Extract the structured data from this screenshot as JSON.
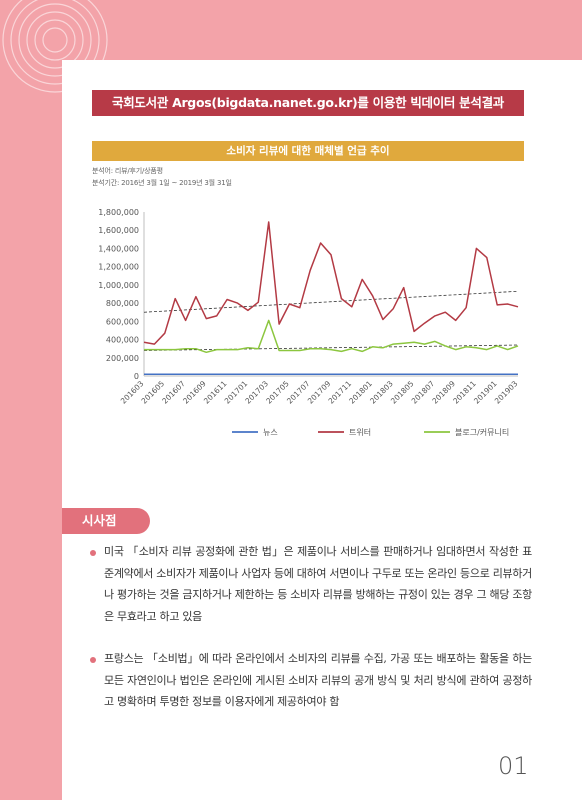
{
  "header": {
    "title": "국회도서관 Argos(bigdata.nanet.go.kr)를 이용한 빅데이터 분석결과"
  },
  "chart_section": {
    "title": "소비자 리뷰에 대한 매체별 언급 추이",
    "meta_target": "분석어: 리뷰/후기/상품평",
    "meta_period": "분석기간: 2016년 3월 1일 ~ 2019년 3월 31일"
  },
  "chart_data": {
    "type": "line",
    "title": "소비자 리뷰에 대한 매체별 언급 추이",
    "y_ticks": [
      0,
      200000,
      400000,
      600000,
      800000,
      1000000,
      1200000,
      1400000,
      1600000,
      1800000
    ],
    "y_tick_labels": [
      "0",
      "200,000",
      "400,000",
      "600,000",
      "800,000",
      "1,000,000",
      "1,200,000",
      "1,400,000",
      "1,600,000",
      "1,800,000"
    ],
    "ylim": [
      0,
      1800000
    ],
    "x_tick_labels": [
      "201603",
      "201605",
      "201607",
      "201609",
      "201611",
      "201701",
      "201703",
      "201705",
      "201707",
      "201709",
      "201711",
      "201801",
      "201803",
      "201805",
      "201807",
      "201809",
      "201811",
      "201901",
      "201903"
    ],
    "x": [
      "201603",
      "201604",
      "201605",
      "201606",
      "201607",
      "201608",
      "201609",
      "201610",
      "201611",
      "201612",
      "201701",
      "201702",
      "201703",
      "201704",
      "201705",
      "201706",
      "201707",
      "201708",
      "201709",
      "201710",
      "201711",
      "201712",
      "201801",
      "201802",
      "201803",
      "201804",
      "201805",
      "201806",
      "201807",
      "201808",
      "201809",
      "201810",
      "201811",
      "201812",
      "201901",
      "201902",
      "201903"
    ],
    "series": [
      {
        "name": "뉴스",
        "color": "#4472c4",
        "values": [
          20000,
          20000,
          20000,
          20000,
          20000,
          20000,
          20000,
          20000,
          20000,
          20000,
          20000,
          20000,
          20000,
          20000,
          20000,
          20000,
          20000,
          20000,
          20000,
          20000,
          20000,
          20000,
          20000,
          20000,
          20000,
          20000,
          20000,
          20000,
          20000,
          20000,
          20000,
          20000,
          20000,
          20000,
          20000,
          20000,
          20000
        ]
      },
      {
        "name": "트위터",
        "color": "#b33a44",
        "values": [
          370000,
          350000,
          470000,
          850000,
          610000,
          870000,
          630000,
          660000,
          840000,
          800000,
          720000,
          810000,
          1690000,
          570000,
          790000,
          750000,
          1160000,
          1460000,
          1330000,
          850000,
          760000,
          1060000,
          880000,
          620000,
          740000,
          970000,
          490000,
          580000,
          660000,
          700000,
          610000,
          750000,
          1400000,
          1300000,
          780000,
          790000,
          760000
        ]
      },
      {
        "name": "블로그/커뮤니티",
        "color": "#8cc63f",
        "values": [
          290000,
          290000,
          290000,
          290000,
          300000,
          300000,
          260000,
          290000,
          290000,
          290000,
          310000,
          300000,
          610000,
          280000,
          280000,
          280000,
          300000,
          300000,
          290000,
          270000,
          300000,
          270000,
          320000,
          310000,
          350000,
          360000,
          370000,
          350000,
          380000,
          330000,
          290000,
          320000,
          310000,
          290000,
          330000,
          290000,
          330000
        ]
      }
    ],
    "trendlines": [
      {
        "series": "트위터",
        "start": 700000,
        "end": 930000
      },
      {
        "series": "블로그/커뮤니티",
        "start": 280000,
        "end": 340000
      }
    ],
    "legend_position": "bottom",
    "grid": false
  },
  "insight": {
    "label": "시사점",
    "bullets": [
      "미국 「소비자 리뷰 공정화에 관한 법」은 제품이나 서비스를 판매하거나 임대하면서 작성한 표준계약에서 소비자가 제품이나 사업자 등에 대하여 서면이나 구두로 또는 온라인 등으로 리뷰하거나 평가하는 것을 금지하거나 제한하는 등 소비자 리뷰를 방해하는 규정이 있는 경우 그 해당 조항은 무효라고 하고 있음",
      "프랑스는 「소비법」에 따라 온라인에서 소비자의 리뷰를 수집, 가공 또는 배포하는 활동을 하는 모든 자연인이나 법인은 온라인에 게시된 소비자 리뷰의 공개 방식 및 처리 방식에 관하여 공정하고 명확하며 투명한 정보를 이용자에게 제공하여야 함"
    ]
  },
  "footer": {
    "page_number": "01"
  },
  "colors": {
    "background": "#f3a3a9",
    "header": "#b73a47",
    "chart_title": "#e0a93d",
    "accent": "#e2717c"
  }
}
